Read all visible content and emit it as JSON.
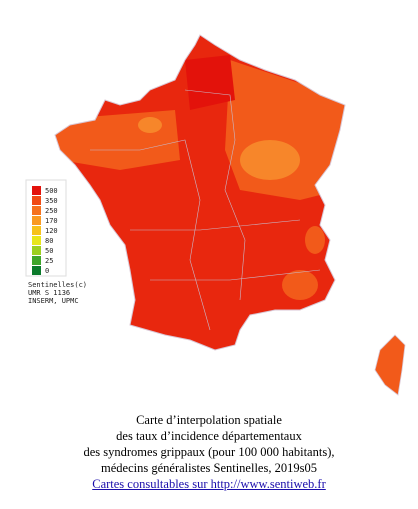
{
  "legend": {
    "items": [
      {
        "label": "500",
        "color": "#e3120b"
      },
      {
        "label": "350",
        "color": "#f04a14"
      },
      {
        "label": "250",
        "color": "#f5721e"
      },
      {
        "label": "170",
        "color": "#f99a22"
      },
      {
        "label": "120",
        "color": "#f6c21c"
      },
      {
        "label": "80",
        "color": "#e8e61a"
      },
      {
        "label": "50",
        "color": "#9ccf1e"
      },
      {
        "label": "25",
        "color": "#3ea52a"
      },
      {
        "label": "0",
        "color": "#0b7a2a"
      }
    ]
  },
  "credit": [
    "Sentinelles(c)",
    "UMR S 1136",
    "INSERM, UPMC"
  ],
  "caption": {
    "lines": [
      "Carte d’interpolation spatiale",
      "des taux d’incidence départementaux",
      "des syndromes grippaux (pour 100 000 habitants),",
      "médecins généralistes Sentinelles, 2019s05"
    ],
    "link": "Cartes consultables sur http://www.sentiweb.fr"
  }
}
